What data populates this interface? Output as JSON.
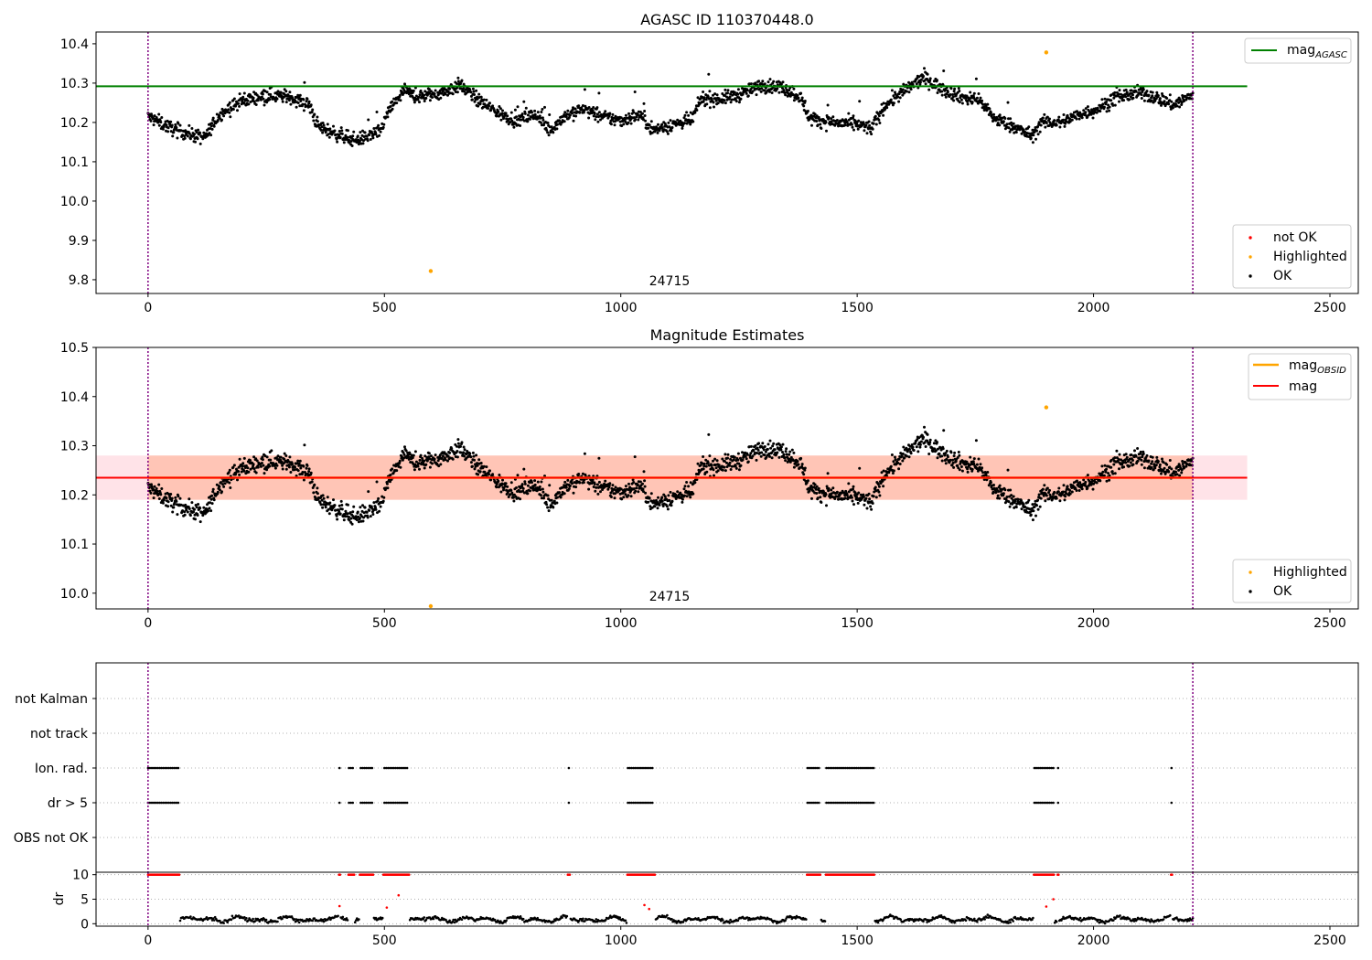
{
  "colors": {
    "ok": "#000000",
    "highlighted": "#ffa500",
    "not_ok": "#ff0000",
    "mag_agasc": "#008000",
    "mag_obsid": "#ffa500",
    "mag": "#ff0000",
    "band_pink": "#ffc0cb",
    "band_orange": "#ffa07a",
    "boundary": "#800080",
    "grid": "#b0b0b0"
  },
  "chart_data": [
    {
      "type": "scatter",
      "title": "AGASC ID 110370448.0",
      "xlim": [
        -110,
        2560
      ],
      "ylim": [
        9.765,
        10.43
      ],
      "x_ticks": [
        0,
        500,
        1000,
        1500,
        2000,
        2500
      ],
      "x_tick_labels": [
        "0",
        "500",
        "1000",
        "1500",
        "2000",
        "2500"
      ],
      "y_ticks": [
        9.8,
        9.9,
        10.0,
        10.1,
        10.2,
        10.3,
        10.4
      ],
      "y_tick_labels": [
        "9.8",
        "9.9",
        "10.0",
        "10.1",
        "10.2",
        "10.3",
        "10.4"
      ],
      "obsid_label": "24715",
      "obs_boundaries_x": [
        0,
        2210
      ],
      "hlines": [
        {
          "name": "mag_AGASC",
          "y": 10.292,
          "x_range": [
            -110,
            2325
          ]
        }
      ],
      "series_summary": [
        {
          "name": "OK",
          "x_range": [
            0,
            2210
          ],
          "y_range": [
            10.1,
            10.36
          ],
          "approx_points": 2210
        }
      ],
      "highlighted_points": [
        {
          "x": 598,
          "y": 9.822
        },
        {
          "x": 1900,
          "y": 10.378
        }
      ],
      "legends": [
        {
          "position": "top-right",
          "entries": [
            {
              "label_main": "mag",
              "label_sub": "AGASC"
            }
          ]
        },
        {
          "position": "bottom-right",
          "entries": [
            {
              "label": "not OK"
            },
            {
              "label": "Highlighted"
            },
            {
              "label": "OK"
            }
          ]
        }
      ]
    },
    {
      "type": "scatter",
      "title": "Magnitude Estimates",
      "xlim": [
        -110,
        2560
      ],
      "ylim": [
        9.968,
        10.5
      ],
      "x_ticks": [
        0,
        500,
        1000,
        1500,
        2000,
        2500
      ],
      "x_tick_labels": [
        "0",
        "500",
        "1000",
        "1500",
        "2000",
        "2500"
      ],
      "y_ticks": [
        10.0,
        10.1,
        10.2,
        10.3,
        10.4,
        10.5
      ],
      "y_tick_labels": [
        "10.0",
        "10.1",
        "10.2",
        "10.3",
        "10.4",
        "10.5"
      ],
      "obsid_label": "24715",
      "obs_boundaries_x": [
        0,
        2210
      ],
      "hlines": [
        {
          "name": "mag_OBSID",
          "y": 10.235,
          "x_range": [
            -110,
            2325
          ]
        },
        {
          "name": "mag",
          "y": 10.235,
          "x_range": [
            -110,
            2325
          ]
        }
      ],
      "bands": [
        {
          "name": "mag",
          "y_range": [
            10.19,
            10.28
          ]
        },
        {
          "name": "mag_OBSID",
          "y_range": [
            10.19,
            10.28
          ]
        }
      ],
      "highlighted_points": [
        {
          "x": 598,
          "y": 9.972
        },
        {
          "x": 1900,
          "y": 10.378
        }
      ],
      "legends": [
        {
          "position": "top-right",
          "entries": [
            {
              "label_main": "mag",
              "label_sub": "OBSID"
            },
            {
              "label": "mag"
            }
          ]
        },
        {
          "position": "bottom-right",
          "entries": [
            {
              "label": "Highlighted"
            },
            {
              "label": "OK"
            }
          ]
        }
      ]
    },
    {
      "type": "scatter",
      "title": "",
      "xlim": [
        -110,
        2560
      ],
      "flag_rows": [
        "not Kalman",
        "not track",
        "Ion. rad.",
        "dr > 5",
        "OBS not OK"
      ],
      "flagged_x_ranges": {
        "not Kalman": [],
        "not track": [],
        "Ion. rad.": [
          [
            0,
            65
          ],
          [
            405,
            405
          ],
          [
            425,
            435
          ],
          [
            450,
            475
          ],
          [
            500,
            550
          ],
          [
            890,
            890
          ],
          [
            1015,
            1070
          ],
          [
            1395,
            1420
          ],
          [
            1435,
            1535
          ],
          [
            1875,
            1915
          ],
          [
            1925,
            1925
          ],
          [
            2165,
            2165
          ]
        ],
        "dr > 5": [
          [
            0,
            65
          ],
          [
            405,
            405
          ],
          [
            425,
            435
          ],
          [
            450,
            475
          ],
          [
            500,
            550
          ],
          [
            890,
            890
          ],
          [
            1015,
            1070
          ],
          [
            1395,
            1420
          ],
          [
            1435,
            1535
          ],
          [
            1875,
            1915
          ],
          [
            1925,
            1925
          ],
          [
            2165,
            2165
          ]
        ],
        "OBS not OK": []
      },
      "obs_boundaries_x": [
        0,
        2210
      ]
    },
    {
      "type": "scatter",
      "title": "",
      "ylabel": "dr",
      "xlim": [
        -110,
        2560
      ],
      "ylim": [
        -0.5,
        10.5
      ],
      "x_ticks": [
        0,
        500,
        1000,
        1500,
        2000,
        2500
      ],
      "x_tick_labels": [
        "0",
        "500",
        "1000",
        "1500",
        "2000",
        "2500"
      ],
      "y_ticks": [
        0,
        5,
        10
      ],
      "y_tick_labels": [
        "0",
        "5",
        "10"
      ],
      "dr_clip": 10,
      "obs_boundaries_x": [
        0,
        2210
      ]
    }
  ]
}
